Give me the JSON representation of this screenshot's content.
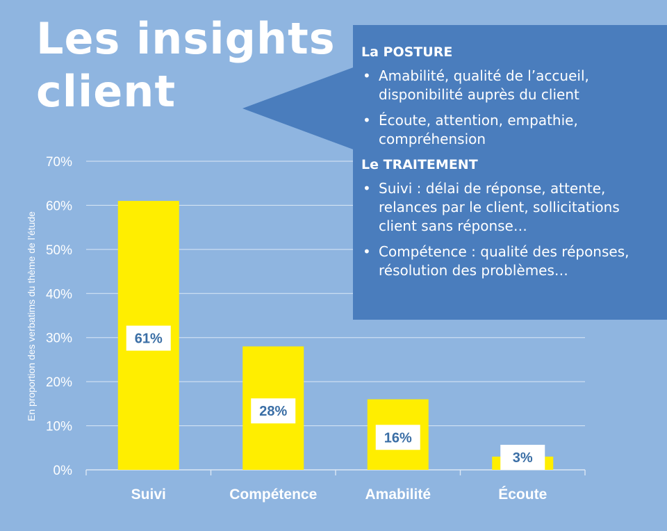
{
  "title": "Les insights client",
  "callout": {
    "sections": [
      {
        "heading": "La POSTURE",
        "bullets": [
          "Amabilité, qualité de l’accueil, disponibilité auprès du client",
          "Écoute, attention, empathie, compréhension"
        ]
      },
      {
        "heading": "Le TRAITEMENT",
        "bullets": [
          "Suivi : délai de réponse, attente, relances par le client, sollicitations client sans réponse…",
          "Compétence : qualité des réponses, résolution des problèmes…"
        ]
      }
    ]
  },
  "chart_data": {
    "type": "bar",
    "categories": [
      "Suivi",
      "Compétence",
      "Amabilité",
      "Écoute"
    ],
    "values": [
      61,
      28,
      16,
      3
    ],
    "data_labels": [
      "61%",
      "28%",
      "16%",
      "3%"
    ],
    "ylabel": "En proportion des verbatims du thème de l’étude",
    "ylim": [
      0,
      70
    ],
    "yticks": [
      "0%",
      "10%",
      "20%",
      "30%",
      "40%",
      "50%",
      "60%",
      "70%"
    ],
    "grid": true,
    "colors": {
      "bar": "#ffee00",
      "data_label_text": "#3a6ea5",
      "data_label_box": "#ffffff",
      "axis_text": "#ffffff",
      "gridline": "#dce8f5"
    }
  },
  "colors": {
    "background": "#8fb5e0",
    "callout": "#4a7dbd"
  }
}
